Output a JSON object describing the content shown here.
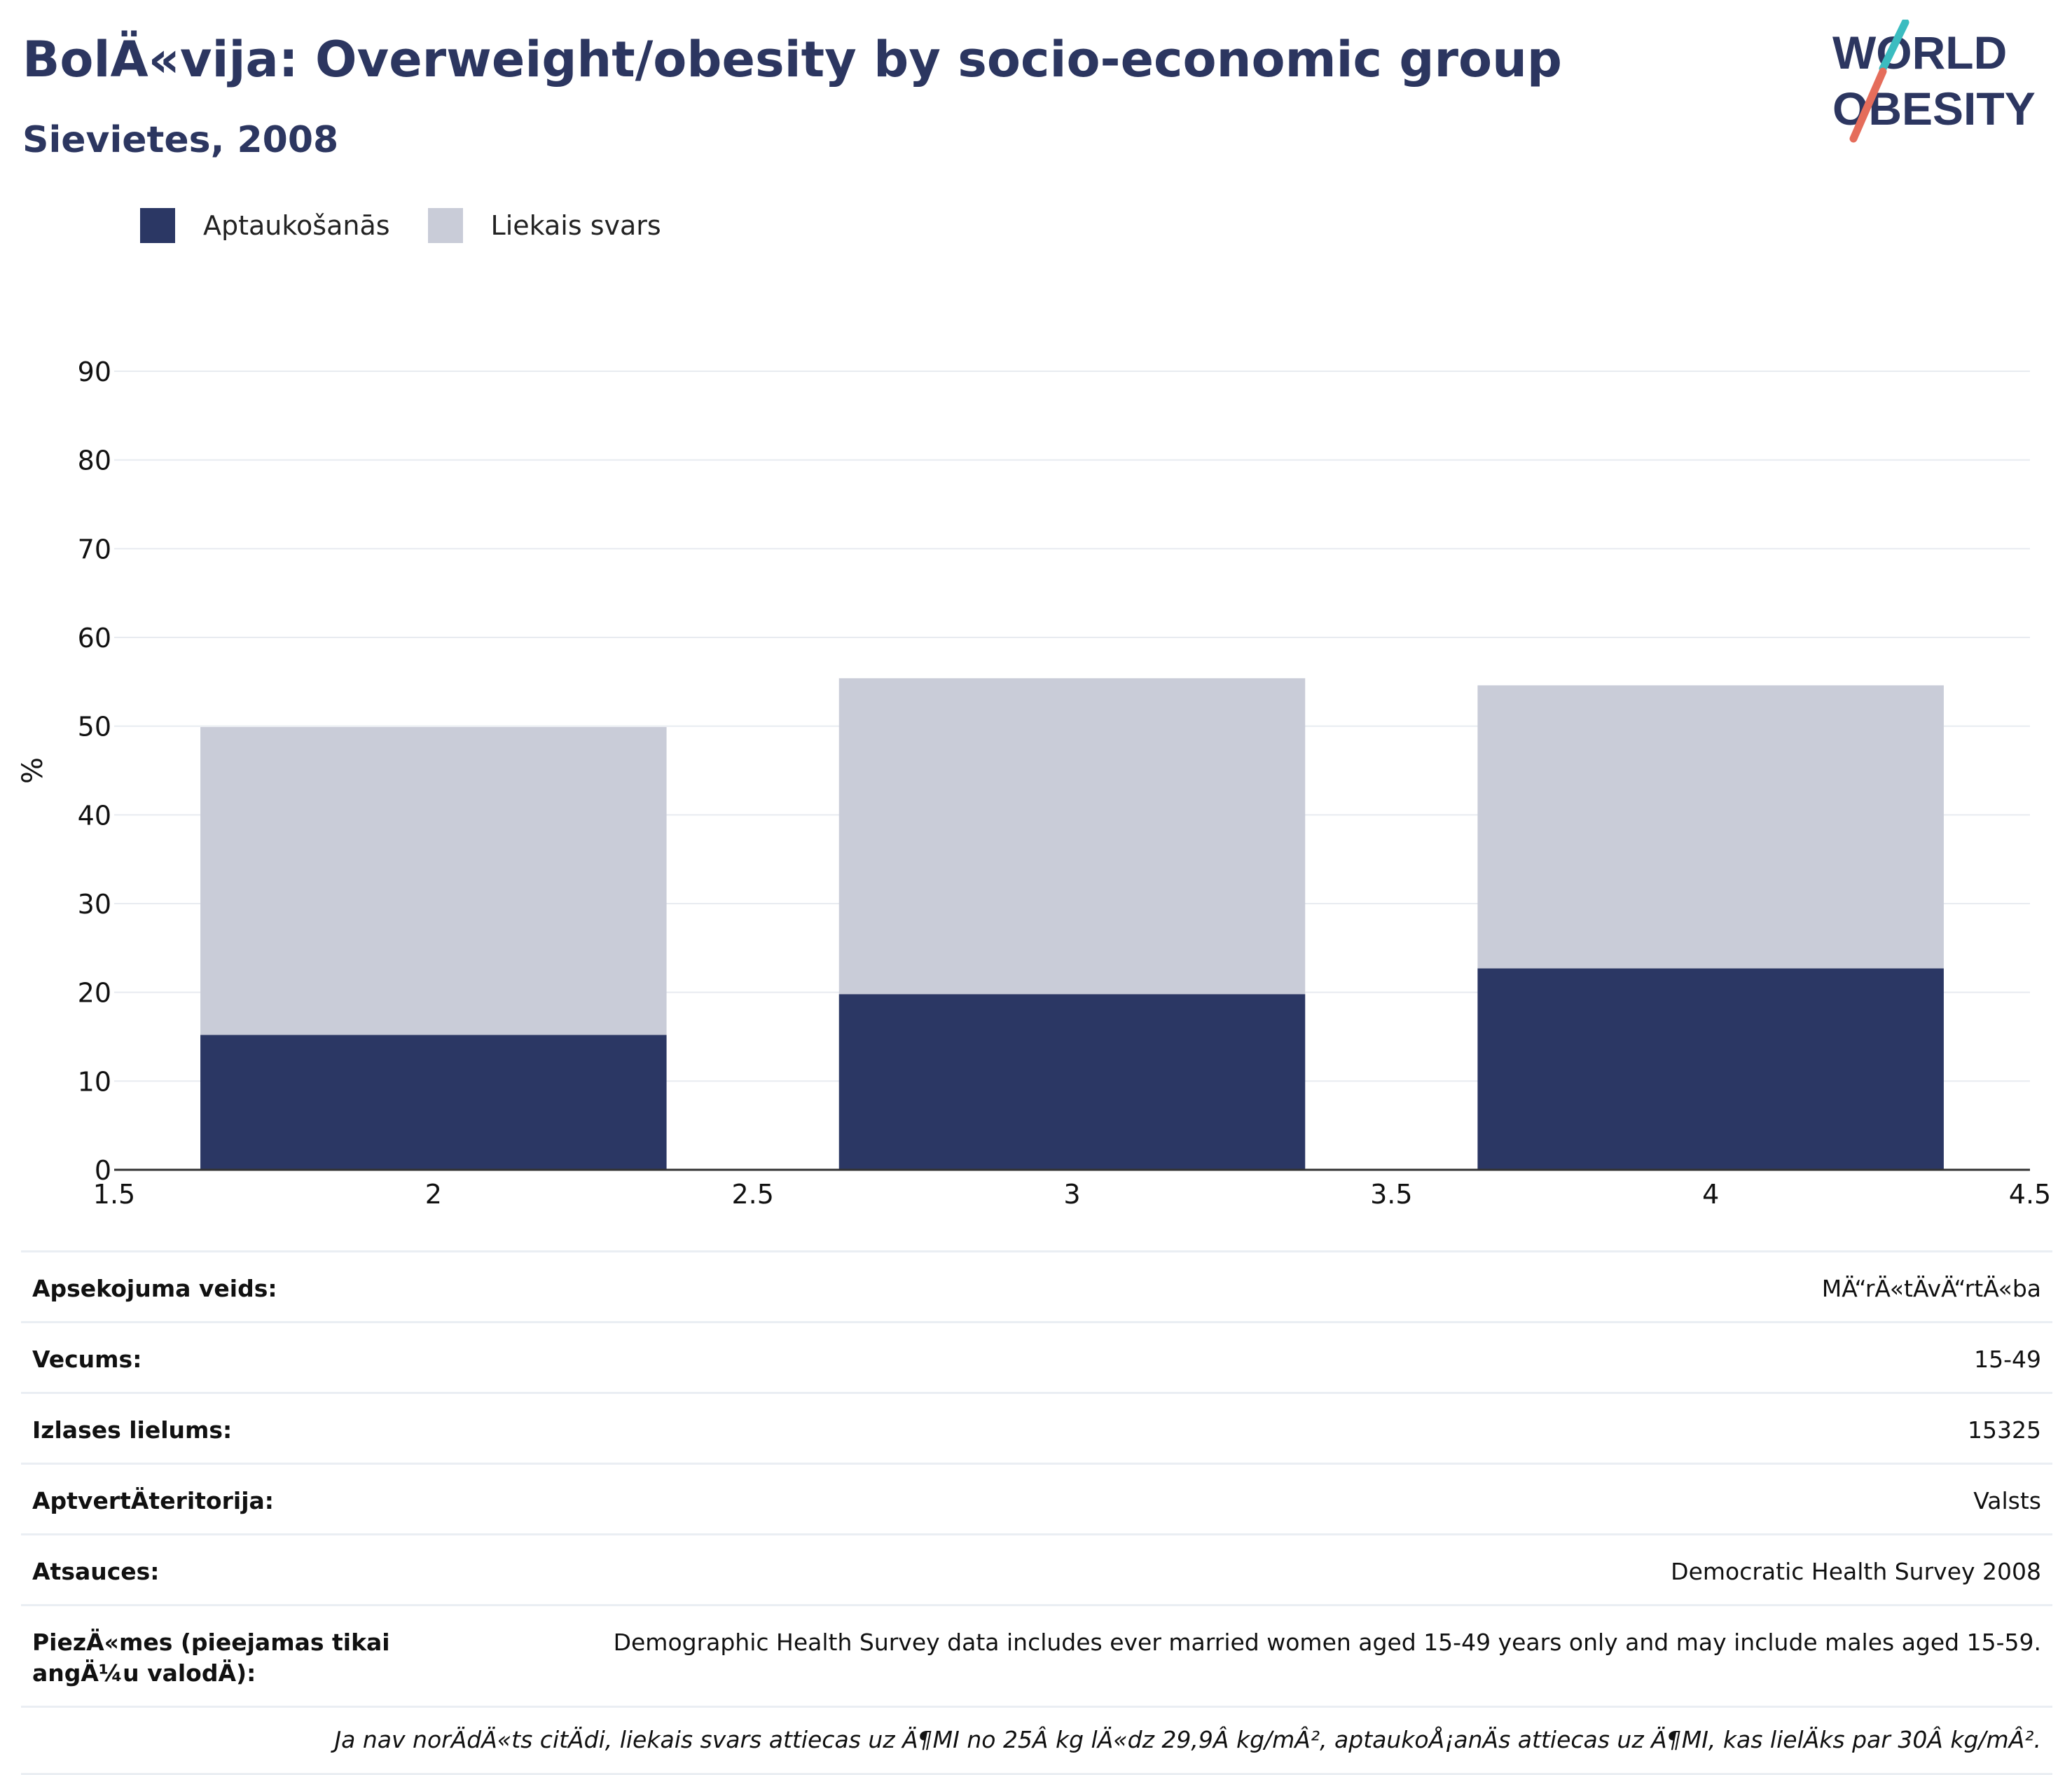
{
  "header": {
    "title": "BolÄ«vija: Overweight/obesity by socio-economic group",
    "subtitle": "Sievietes, 2008"
  },
  "logo": {
    "line1": "WORLD",
    "line2": "OBESITY",
    "colors": {
      "text": "#2c3660",
      "slash_top": "#3bbcc0",
      "slash_bottom": "#e56d5b"
    }
  },
  "legend": [
    {
      "label": "Aptaukošanās",
      "color": "#2b3764"
    },
    {
      "label": "Liekais svars",
      "color": "#c9ccd8"
    }
  ],
  "chart_data": {
    "type": "bar",
    "stacked": true,
    "ylabel": "%",
    "xlim": [
      1.5,
      4.5
    ],
    "ylim": [
      0,
      90
    ],
    "x_ticks": [
      "1.5",
      "2",
      "2.5",
      "3",
      "3.5",
      "4",
      "4.5"
    ],
    "y_ticks": [
      "0",
      "10",
      "20",
      "30",
      "40",
      "50",
      "60",
      "70",
      "80",
      "90"
    ],
    "x": [
      2,
      3,
      4
    ],
    "bar_width": 0.73,
    "series": [
      {
        "name": "Aptaukošanās",
        "values": [
          15.2,
          19.8,
          22.7
        ],
        "color": "#2b3764"
      },
      {
        "name": "Liekais svars",
        "values": [
          34.7,
          35.6,
          31.9
        ],
        "color": "#c9ccd8"
      }
    ],
    "grid": true
  },
  "info": {
    "rows": [
      {
        "key": "Apsekojuma veids:",
        "value": "MÄ“rÄ«tÄvÄ“rtÄ«ba"
      },
      {
        "key": "Vecums:",
        "value": "15-49"
      },
      {
        "key": "Izlases lielums:",
        "value": "15325"
      },
      {
        "key": "AptvertÄteritorija:",
        "value": "Valsts"
      },
      {
        "key": "Atsauces:",
        "value": "Democratic Health Survey 2008"
      },
      {
        "key": "PiezÄ«mes (pieejamas tikai angÄ¼u valodÄ):",
        "value": "Demographic Health Survey data includes ever married women aged 15-49 years only and may include males aged 15-59."
      }
    ],
    "note": "Ja nav norÄdÄ«ts citÄdi, liekais svars attiecas uz Ä¶MI no 25Â kg lÄ«dz 29,9Â kg/mÂ², aptaukoÅ¡anÄs attiecas uz Ä¶MI, kas lielÄks par 30Â kg/mÂ²."
  }
}
